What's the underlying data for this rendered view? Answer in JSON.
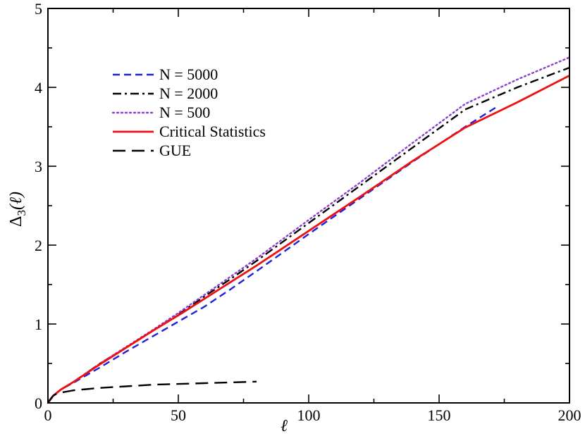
{
  "chart_data": {
    "type": "line",
    "title": "",
    "xlabel": "ℓ",
    "ylabel_main": "Δ",
    "ylabel_sub": "3",
    "ylabel_arg": "(ℓ)",
    "xlim": [
      0,
      200
    ],
    "ylim": [
      0,
      5
    ],
    "xticks": [
      0,
      50,
      100,
      150,
      200
    ],
    "yticks": [
      0,
      1,
      2,
      3,
      4,
      5
    ],
    "grid": false,
    "legend_position": "upper-left",
    "series": [
      {
        "name": "N = 5000",
        "color": "#2020e0",
        "dash": "dashed",
        "x": [
          0,
          2,
          5,
          10,
          20,
          30,
          40,
          50,
          60,
          70,
          80,
          100,
          120,
          140,
          160,
          172
        ],
        "y": [
          0,
          0.09,
          0.17,
          0.26,
          0.45,
          0.65,
          0.84,
          1.03,
          1.22,
          1.44,
          1.67,
          2.14,
          2.6,
          3.06,
          3.5,
          3.75
        ]
      },
      {
        "name": "N = 2000",
        "color": "#000000",
        "dash": "dashdot",
        "x": [
          0,
          2,
          5,
          10,
          20,
          30,
          40,
          50,
          60,
          70,
          80,
          100,
          120,
          140,
          160,
          180,
          200
        ],
        "y": [
          0,
          0.09,
          0.17,
          0.27,
          0.5,
          0.7,
          0.91,
          1.12,
          1.35,
          1.57,
          1.8,
          2.28,
          2.76,
          3.24,
          3.72,
          4.0,
          4.25
        ]
      },
      {
        "name": "N = 500",
        "color": "#8a3fd1",
        "dash": "dotted",
        "x": [
          0,
          2,
          5,
          10,
          20,
          30,
          40,
          50,
          60,
          70,
          80,
          100,
          120,
          140,
          160,
          180,
          200
        ],
        "y": [
          0,
          0.09,
          0.17,
          0.27,
          0.5,
          0.71,
          0.92,
          1.14,
          1.37,
          1.6,
          1.83,
          2.32,
          2.8,
          3.3,
          3.79,
          4.1,
          4.38
        ]
      },
      {
        "name": "Critical Statistics",
        "color": "#ee1111",
        "dash": "solid",
        "x": [
          0,
          2,
          5,
          10,
          20,
          30,
          40,
          50,
          60,
          70,
          80,
          100,
          120,
          140,
          160,
          180,
          200
        ],
        "y": [
          0,
          0.09,
          0.17,
          0.27,
          0.49,
          0.7,
          0.91,
          1.11,
          1.32,
          1.53,
          1.74,
          2.18,
          2.62,
          3.07,
          3.49,
          3.81,
          4.15
        ]
      },
      {
        "name": "GUE",
        "color": "#000000",
        "dash": "longdash",
        "x": [
          0,
          1,
          2,
          3,
          5,
          10,
          20,
          30,
          40,
          50,
          60,
          70,
          80
        ],
        "y": [
          0,
          0.05,
          0.09,
          0.11,
          0.13,
          0.16,
          0.19,
          0.21,
          0.23,
          0.24,
          0.25,
          0.26,
          0.27
        ]
      }
    ]
  }
}
